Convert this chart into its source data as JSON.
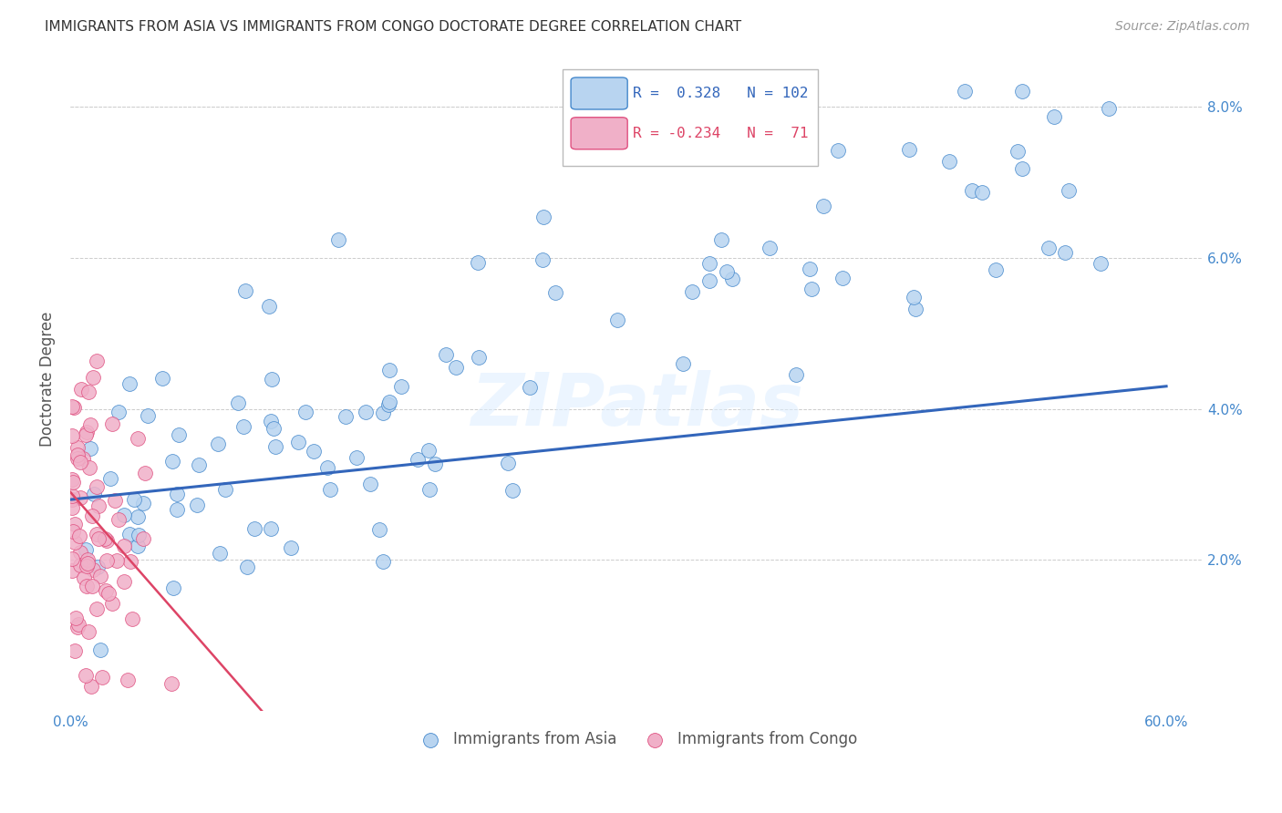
{
  "title": "IMMIGRANTS FROM ASIA VS IMMIGRANTS FROM CONGO DOCTORATE DEGREE CORRELATION CHART",
  "source": "Source: ZipAtlas.com",
  "ylabel": "Doctorate Degree",
  "xlim": [
    0.0,
    0.62
  ],
  "ylim": [
    0.0,
    0.088
  ],
  "x_ticks": [
    0.0,
    0.1,
    0.2,
    0.3,
    0.4,
    0.5,
    0.6
  ],
  "x_tick_labels": [
    "0.0%",
    "",
    "",
    "",
    "",
    "",
    "60.0%"
  ],
  "y_ticks": [
    0.0,
    0.02,
    0.04,
    0.06,
    0.08
  ],
  "y_tick_labels": [
    "",
    "2.0%",
    "4.0%",
    "6.0%",
    "8.0%"
  ],
  "legend_asia_R": "0.328",
  "legend_asia_N": "102",
  "legend_congo_R": "-0.234",
  "legend_congo_N": "71",
  "asia_color": "#b8d4f0",
  "congo_color": "#f0b0c8",
  "asia_edge_color": "#4488cc",
  "congo_edge_color": "#e05080",
  "asia_line_color": "#3366bb",
  "congo_line_color": "#dd4466",
  "tick_color": "#4488cc",
  "watermark": "ZIPatlas",
  "asia_trend_x": [
    0.0,
    0.6
  ],
  "asia_trend_y": [
    0.028,
    0.043
  ],
  "congo_trend_x": [
    0.0,
    0.105
  ],
  "congo_trend_y": [
    0.029,
    0.0
  ],
  "marker_size": 130
}
